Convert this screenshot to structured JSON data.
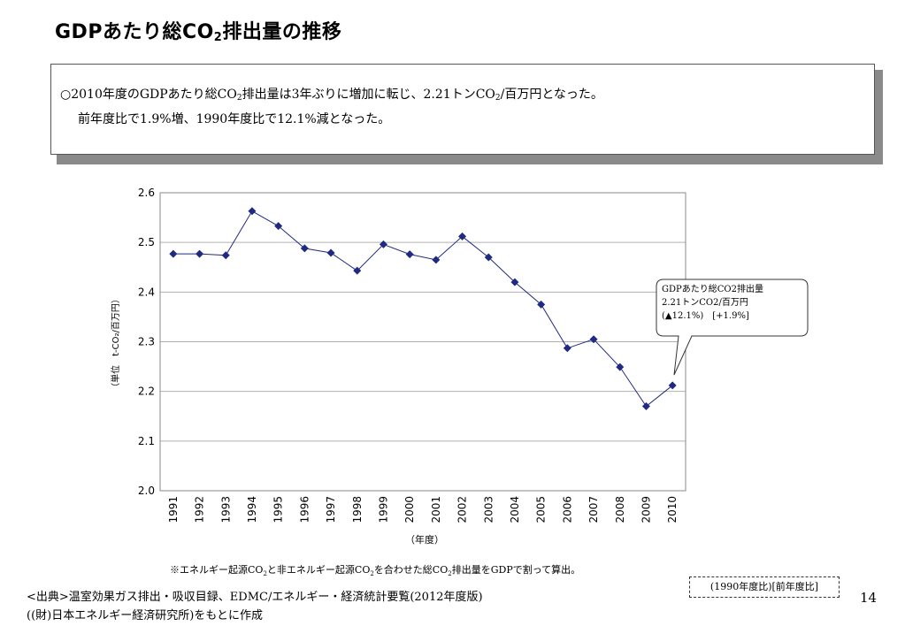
{
  "header": {
    "title_pre": "GDPあたり総CO",
    "title_sub": "2",
    "title_post": "排出量の推移"
  },
  "summary": {
    "line1_pre": "○2010年度のGDPあたり総CO",
    "line1_sub": "2",
    "line1_mid": "排出量は3年ぶりに増加に転じ、2.21トンCO",
    "line1_sub2": "2",
    "line1_post": "/百万円となった。",
    "line2": "前年度比で1.9%増、1990年度比で12.1%減となった。"
  },
  "chart_data": {
    "type": "line",
    "categories": [
      "1991",
      "1992",
      "1993",
      "1994",
      "1995",
      "1996",
      "1997",
      "1998",
      "1999",
      "2000",
      "2001",
      "2002",
      "2003",
      "2004",
      "2005",
      "2006",
      "2007",
      "2008",
      "2009",
      "2010"
    ],
    "series": [
      {
        "values": [
          2.477,
          2.477,
          2.474,
          2.563,
          2.533,
          2.488,
          2.479,
          2.443,
          2.496,
          2.476,
          2.465,
          2.512,
          2.47,
          2.42,
          2.375,
          2.287,
          2.305,
          2.249,
          2.17,
          2.212
        ]
      }
    ],
    "ylim": [
      2.0,
      2.6
    ],
    "yticks": [
      "2.0",
      "2.1",
      "2.2",
      "2.3",
      "2.4",
      "2.5",
      "2.6"
    ],
    "xlabel": "（年度）",
    "ylabel": "（単位　t-CO₂/百万円）",
    "grid": true,
    "color": "#1f2a80",
    "callout": {
      "line1": "GDPあたり総CO2排出量",
      "line2": "2.21トンCO2/百万円",
      "line3": "(▲12.1%)　[+1.9%]"
    }
  },
  "footer": {
    "note_pre": "※エネルギー起源CO",
    "note_sub1": "2",
    "note_mid1": "と非エネルギー起源CO",
    "note_sub2": "2",
    "note_mid2": "を合わせた総CO",
    "note_sub3": "2",
    "note_post": "排出量をGDPで割って算出。",
    "source_line1": "<出典>温室効果ガス排出・吸収目録、EDMC/エネルギー・経済統計要覧(2012年度版)",
    "source_line2": "((財)日本エネルギー経済研究所)をもとに作成",
    "ref_box": "(1990年度比)[前年度比]",
    "page_number": "14"
  }
}
